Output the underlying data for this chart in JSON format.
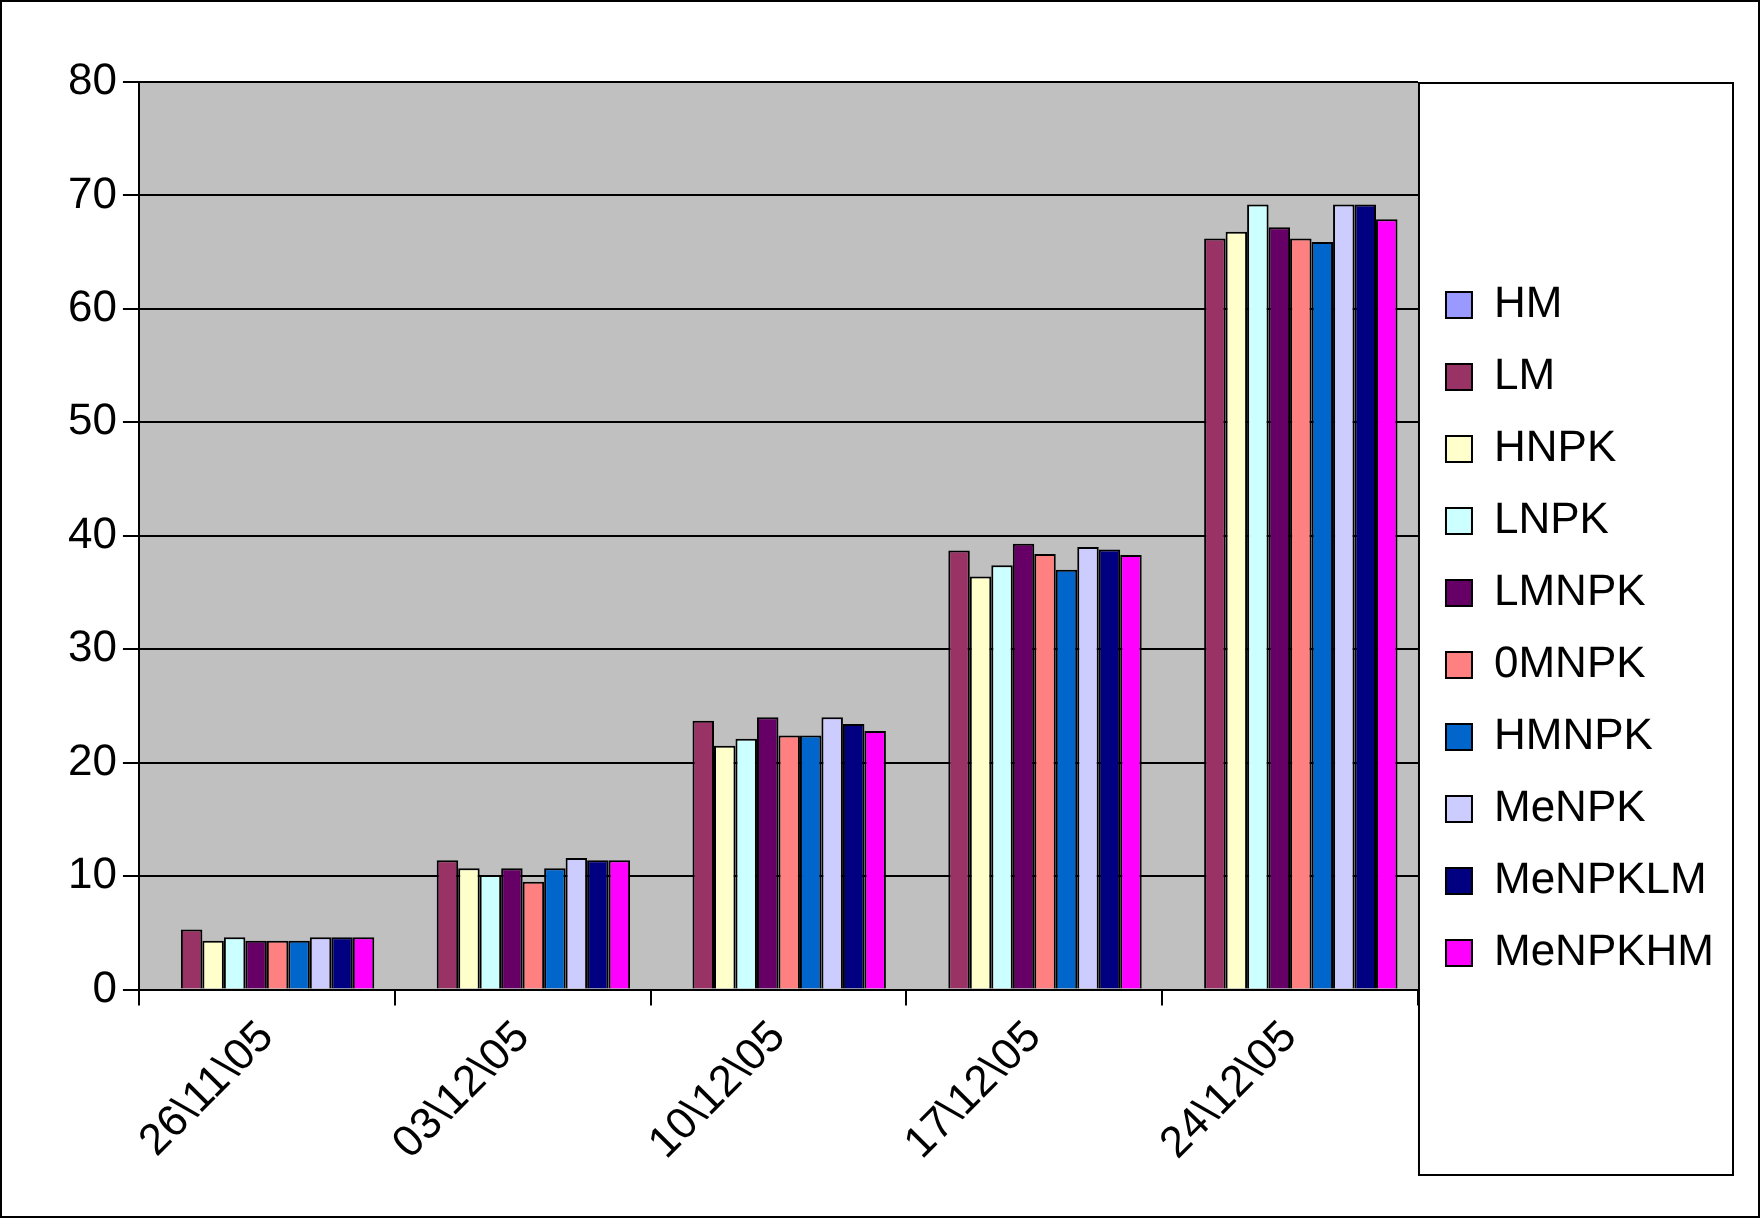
{
  "chart_data": {
    "type": "bar",
    "categories": [
      "26\\11\\05",
      "03\\12\\05",
      "10\\12\\05",
      "17\\12\\05",
      "24\\12\\05"
    ],
    "series": [
      {
        "name": "HM",
        "color": "#9999ff",
        "values": [
          null,
          null,
          null,
          null,
          null
        ]
      },
      {
        "name": "LM",
        "color": "#993366",
        "values": [
          5.3,
          11.4,
          23.7,
          38.7,
          66.2
        ]
      },
      {
        "name": "HNPK",
        "color": "#ffffcc",
        "values": [
          4.3,
          10.7,
          21.5,
          36.4,
          66.8
        ]
      },
      {
        "name": "LNPK",
        "color": "#ccffff",
        "values": [
          4.6,
          10.1,
          22.1,
          37.4,
          69.2
        ]
      },
      {
        "name": "LMNPK",
        "color": "#660066",
        "values": [
          4.3,
          10.7,
          24.0,
          39.3,
          67.2
        ]
      },
      {
        "name": "0MNPK",
        "color": "#ff8080",
        "values": [
          4.3,
          9.5,
          22.4,
          38.4,
          66.2
        ]
      },
      {
        "name": "HMNPK",
        "color": "#0066cc",
        "values": [
          4.3,
          10.7,
          22.4,
          37.0,
          65.9
        ]
      },
      {
        "name": "MeNPK",
        "color": "#ccccff",
        "values": [
          4.6,
          11.6,
          24.0,
          39.0,
          69.2
        ]
      },
      {
        "name": "MeNPKLM",
        "color": "#000080",
        "values": [
          4.6,
          11.4,
          23.4,
          38.8,
          69.2
        ]
      },
      {
        "name": "MeNPKHM",
        "color": "#ff00ff",
        "values": [
          4.6,
          11.4,
          22.8,
          38.3,
          67.9
        ]
      }
    ],
    "ylim": [
      0,
      80
    ],
    "yticks": [
      0,
      10,
      20,
      30,
      40,
      50,
      60,
      70,
      80
    ],
    "grid": "y",
    "legend": "right"
  }
}
